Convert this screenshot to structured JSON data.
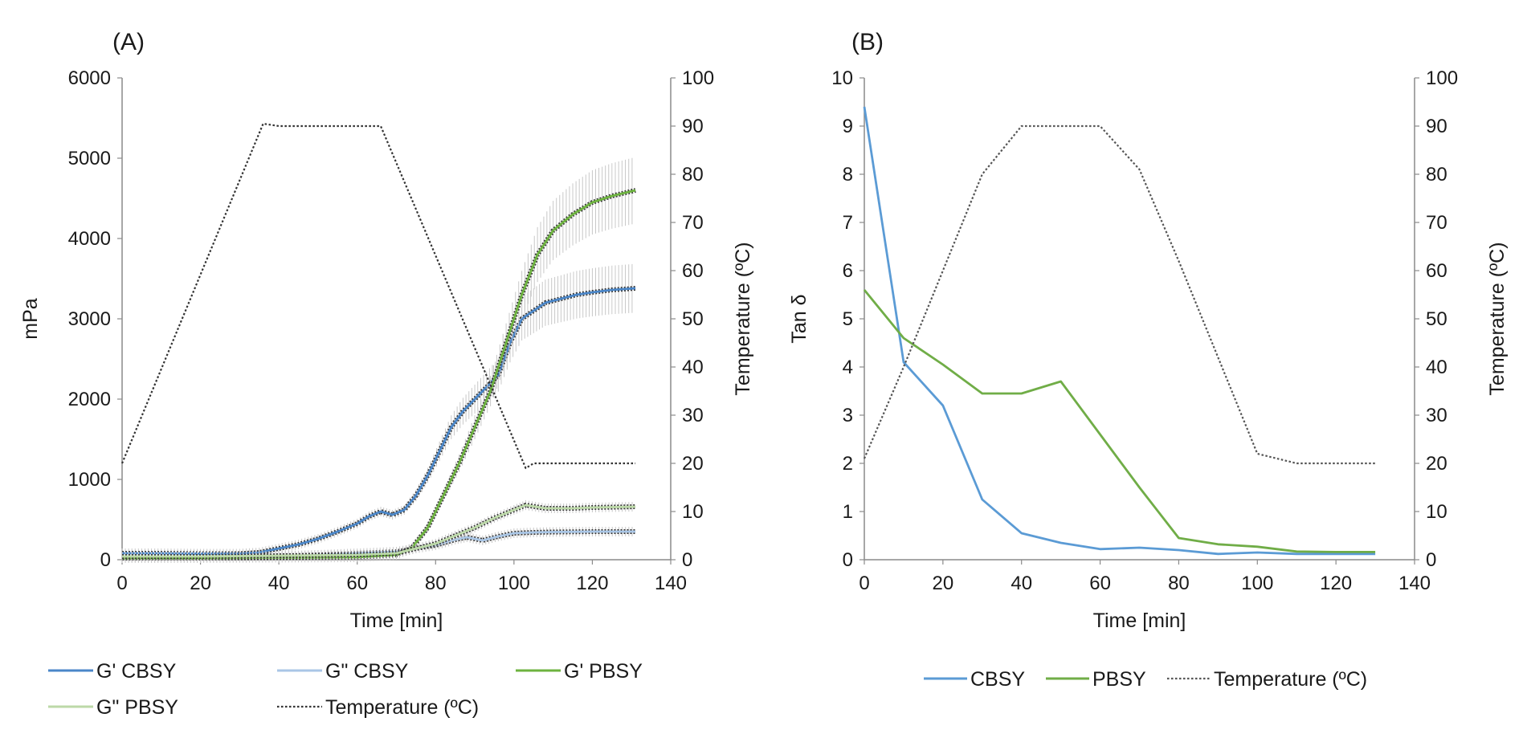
{
  "chart_data": [
    {
      "panel_label": "(A)",
      "type": "line",
      "xlabel": "Time [min]",
      "ylabel": "mPa",
      "y2label": "Temperature (ºC)",
      "xlim": [
        0,
        140
      ],
      "ylim": [
        0,
        6000
      ],
      "y2lim": [
        0,
        100
      ],
      "xticks": [
        0,
        20,
        40,
        60,
        80,
        100,
        120,
        140
      ],
      "yticks": [
        0,
        1000,
        2000,
        3000,
        4000,
        5000,
        6000
      ],
      "y2ticks": [
        0,
        10,
        20,
        30,
        40,
        50,
        60,
        70,
        80,
        90,
        100
      ],
      "grid": false,
      "legend_position": "bottom",
      "series": [
        {
          "name": "G' CBSY",
          "axis": "left",
          "color": "#4a86c8",
          "style": "solid",
          "error_bars": true,
          "x": [
            0,
            10,
            20,
            30,
            35,
            40,
            45,
            50,
            55,
            60,
            63,
            66,
            69,
            72,
            75,
            78,
            81,
            84,
            87,
            90,
            93,
            96,
            99,
            102,
            105,
            108,
            112,
            116,
            120,
            125,
            131
          ],
          "y": [
            80,
            80,
            75,
            75,
            90,
            140,
            190,
            260,
            350,
            450,
            540,
            600,
            560,
            620,
            800,
            1050,
            1350,
            1650,
            1850,
            2000,
            2150,
            2300,
            2700,
            3000,
            3100,
            3200,
            3250,
            3300,
            3330,
            3360,
            3380
          ]
        },
        {
          "name": "G\" CBSY",
          "axis": "left",
          "color": "#a9c6e6",
          "style": "solid",
          "error_bars": true,
          "x": [
            0,
            20,
            40,
            60,
            70,
            80,
            85,
            88,
            92,
            96,
            100,
            105,
            110,
            120,
            131
          ],
          "y": [
            30,
            30,
            40,
            80,
            100,
            180,
            250,
            280,
            240,
            290,
            330,
            340,
            345,
            350,
            350
          ]
        },
        {
          "name": "G' PBSY",
          "axis": "left",
          "color": "#6db33f",
          "style": "solid",
          "error_bars": true,
          "x": [
            0,
            20,
            40,
            60,
            70,
            74,
            78,
            82,
            86,
            90,
            94,
            98,
            102,
            106,
            110,
            115,
            120,
            125,
            131
          ],
          "y": [
            20,
            20,
            25,
            30,
            60,
            150,
            400,
            800,
            1200,
            1650,
            2100,
            2700,
            3300,
            3800,
            4100,
            4300,
            4450,
            4530,
            4600
          ]
        },
        {
          "name": "G\" PBSY",
          "axis": "left",
          "color": "#bcd9a8",
          "style": "solid",
          "error_bars": true,
          "x": [
            0,
            20,
            40,
            60,
            70,
            80,
            90,
            95,
            100,
            103,
            108,
            115,
            120,
            131
          ],
          "y": [
            40,
            40,
            50,
            60,
            80,
            200,
            400,
            520,
            620,
            680,
            640,
            640,
            650,
            660
          ]
        },
        {
          "name": "Temperature (ºC)",
          "axis": "right",
          "color": "#333333",
          "style": "dotted",
          "error_bars": false,
          "x": [
            0,
            36,
            40,
            66,
            103,
            105,
            131
          ],
          "y": [
            20,
            90.5,
            90,
            90,
            19,
            20,
            20
          ]
        }
      ]
    },
    {
      "panel_label": "(B)",
      "type": "line",
      "xlabel": "Time [min]",
      "ylabel": "Tan δ",
      "y2label": "Temperature (ºC)",
      "xlim": [
        0,
        140
      ],
      "ylim": [
        0,
        10
      ],
      "y2lim": [
        0,
        100
      ],
      "xticks": [
        0,
        20,
        40,
        60,
        80,
        100,
        120,
        140
      ],
      "yticks": [
        0,
        1,
        2,
        3,
        4,
        5,
        6,
        7,
        8,
        9,
        10
      ],
      "y2ticks": [
        0,
        10,
        20,
        30,
        40,
        50,
        60,
        70,
        80,
        90,
        100
      ],
      "grid": false,
      "legend_position": "bottom",
      "series": [
        {
          "name": "CBSY",
          "axis": "left",
          "color": "#5b9bd5",
          "style": "solid",
          "x": [
            0,
            10,
            20,
            30,
            40,
            50,
            60,
            70,
            80,
            90,
            100,
            110,
            120,
            130
          ],
          "y": [
            9.4,
            4.1,
            3.2,
            1.25,
            0.55,
            0.35,
            0.22,
            0.25,
            0.2,
            0.12,
            0.15,
            0.12,
            0.12,
            0.12
          ]
        },
        {
          "name": "PBSY",
          "axis": "left",
          "color": "#70ad47",
          "style": "solid",
          "x": [
            0,
            10,
            20,
            30,
            40,
            50,
            60,
            70,
            80,
            90,
            100,
            110,
            120,
            130
          ],
          "y": [
            5.6,
            4.6,
            4.05,
            3.45,
            3.45,
            3.7,
            2.6,
            1.5,
            0.45,
            0.32,
            0.27,
            0.17,
            0.16,
            0.16
          ]
        },
        {
          "name": "Temperature (ºC)",
          "axis": "right",
          "color": "#555555",
          "style": "dotted",
          "x": [
            0,
            10,
            20,
            30,
            40,
            50,
            60,
            70,
            80,
            90,
            100,
            110,
            120,
            130
          ],
          "y": [
            21,
            40,
            60,
            80,
            90,
            90,
            90,
            81,
            62,
            42,
            22,
            20,
            20,
            20
          ]
        }
      ]
    }
  ]
}
